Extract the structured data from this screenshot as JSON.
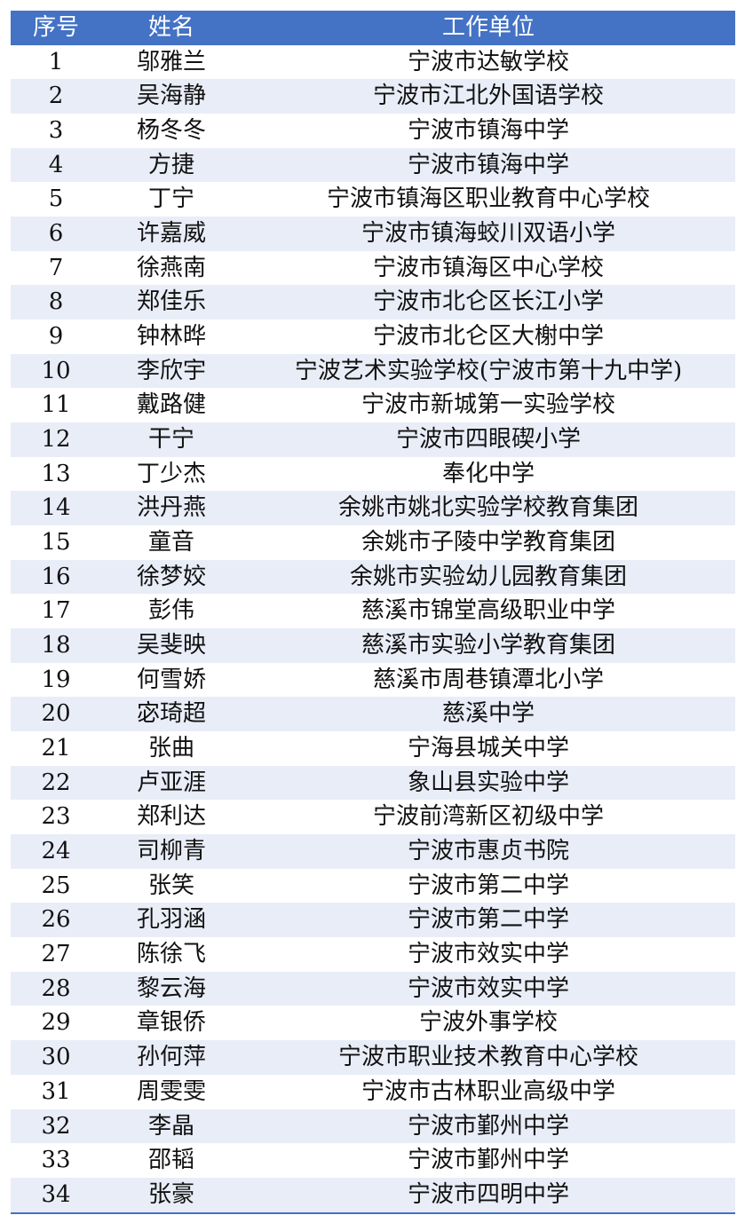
{
  "header": {
    "no": "序号",
    "name": "姓名",
    "unit": "工作单位"
  },
  "colors": {
    "header_bg": "#4472C4",
    "band_bg": "#E9EDF7"
  },
  "rows": [
    {
      "no": "1",
      "name": "邬雅兰",
      "unit": "宁波市达敏学校"
    },
    {
      "no": "2",
      "name": "吴海静",
      "unit": "宁波市江北外国语学校"
    },
    {
      "no": "3",
      "name": "杨冬冬",
      "unit": "宁波市镇海中学"
    },
    {
      "no": "4",
      "name": "方捷",
      "unit": "宁波市镇海中学"
    },
    {
      "no": "5",
      "name": "丁宁",
      "unit": "宁波市镇海区职业教育中心学校"
    },
    {
      "no": "6",
      "name": "许嘉威",
      "unit": "宁波市镇海蛟川双语小学"
    },
    {
      "no": "7",
      "name": "徐燕南",
      "unit": "宁波市镇海区中心学校"
    },
    {
      "no": "8",
      "name": "郑佳乐",
      "unit": "宁波市北仑区长江小学"
    },
    {
      "no": "9",
      "name": "钟林晔",
      "unit": "宁波市北仑区大榭中学"
    },
    {
      "no": "10",
      "name": "李欣宇",
      "unit": "宁波艺术实验学校(宁波市第十九中学)"
    },
    {
      "no": "11",
      "name": "戴路健",
      "unit": "宁波市新城第一实验学校"
    },
    {
      "no": "12",
      "name": "干宁",
      "unit": "宁波市四眼碶小学"
    },
    {
      "no": "13",
      "name": "丁少杰",
      "unit": "奉化中学"
    },
    {
      "no": "14",
      "name": "洪丹燕",
      "unit": "余姚市姚北实验学校教育集团"
    },
    {
      "no": "15",
      "name": "童音",
      "unit": "余姚市子陵中学教育集团"
    },
    {
      "no": "16",
      "name": "徐梦姣",
      "unit": "余姚市实验幼儿园教育集团"
    },
    {
      "no": "17",
      "name": "彭伟",
      "unit": "慈溪市锦堂高级职业中学"
    },
    {
      "no": "18",
      "name": "吴斐映",
      "unit": "慈溪市实验小学教育集团"
    },
    {
      "no": "19",
      "name": "何雪娇",
      "unit": "慈溪市周巷镇潭北小学"
    },
    {
      "no": "20",
      "name": "宓琦超",
      "unit": "慈溪中学"
    },
    {
      "no": "21",
      "name": "张曲",
      "unit": "宁海县城关中学"
    },
    {
      "no": "22",
      "name": "卢亚涯",
      "unit": "象山县实验中学"
    },
    {
      "no": "23",
      "name": "郑利达",
      "unit": "宁波前湾新区初级中学"
    },
    {
      "no": "24",
      "name": "司柳青",
      "unit": "宁波市惠贞书院"
    },
    {
      "no": "25",
      "name": "张笑",
      "unit": "宁波市第二中学"
    },
    {
      "no": "26",
      "name": "孔羽涵",
      "unit": "宁波市第二中学"
    },
    {
      "no": "27",
      "name": "陈徐飞",
      "unit": "宁波市效实中学"
    },
    {
      "no": "28",
      "name": "黎云海",
      "unit": "宁波市效实中学"
    },
    {
      "no": "29",
      "name": "章银侨",
      "unit": "宁波外事学校"
    },
    {
      "no": "30",
      "name": "孙何萍",
      "unit": "宁波市职业技术教育中心学校"
    },
    {
      "no": "31",
      "name": "周雯雯",
      "unit": "宁波市古林职业高级中学"
    },
    {
      "no": "32",
      "name": "李晶",
      "unit": "宁波市鄞州中学"
    },
    {
      "no": "33",
      "name": "邵韬",
      "unit": "宁波市鄞州中学"
    },
    {
      "no": "34",
      "name": "张豪",
      "unit": "宁波市四明中学"
    }
  ]
}
